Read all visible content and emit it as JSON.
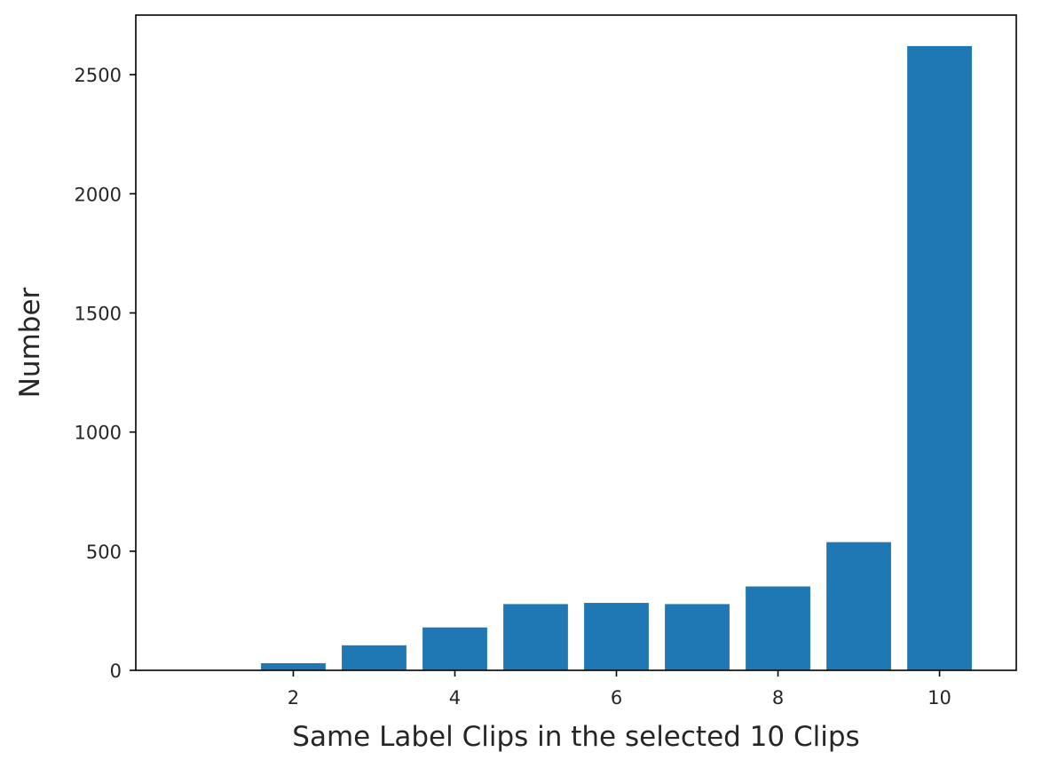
{
  "chart_data": {
    "type": "bar",
    "title": "",
    "xlabel": "Same Label Clips in the selected 10 Clips",
    "ylabel": "Number",
    "x": [
      1,
      2,
      3,
      4,
      5,
      6,
      7,
      8,
      9,
      10
    ],
    "values": [
      0,
      30,
      105,
      180,
      278,
      283,
      278,
      352,
      538,
      2620
    ],
    "xlim": [
      0.05,
      10.95
    ],
    "ylim": [
      0,
      2750
    ],
    "xticks": [
      2,
      4,
      6,
      8,
      10
    ],
    "yticks": [
      0,
      500,
      1000,
      1500,
      2000,
      2500
    ],
    "xtick_labels": [
      "2",
      "4",
      "6",
      "8",
      "10"
    ],
    "ytick_labels": [
      "0",
      "500",
      "1000",
      "1500",
      "2000",
      "2500"
    ],
    "bar_color": "#1f77b4",
    "grid": false,
    "legend": "none"
  }
}
